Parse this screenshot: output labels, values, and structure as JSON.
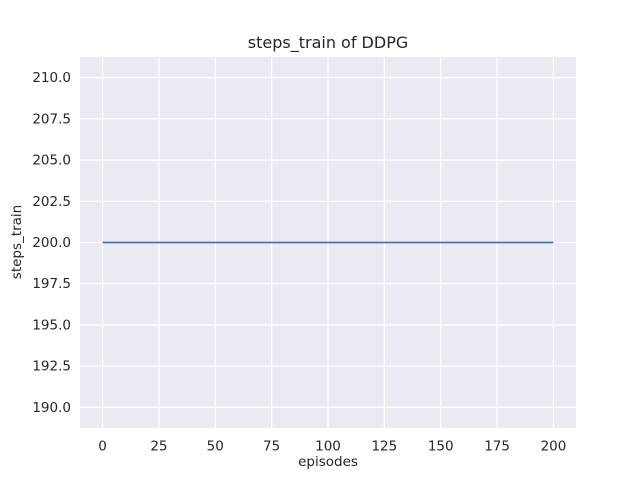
{
  "chart_data": {
    "type": "line",
    "title": "steps_train of DDPG",
    "xlabel": "episodes",
    "ylabel": "steps_train",
    "series": [
      {
        "name": "steps_train",
        "color": "#4c72b0",
        "points": [
          [
            0,
            200
          ],
          [
            200,
            200
          ]
        ],
        "description": "constant flat line at y=200 for all episodes 0-200"
      }
    ],
    "xlim": [
      -10,
      210
    ],
    "ylim": [
      188.75,
      211.25
    ],
    "x_ticks": [
      0,
      25,
      50,
      75,
      100,
      125,
      150,
      175,
      200
    ],
    "x_tick_labels": [
      "0",
      "25",
      "50",
      "75",
      "100",
      "125",
      "150",
      "175",
      "200"
    ],
    "y_ticks": [
      190,
      192.5,
      195,
      197.5,
      200,
      202.5,
      205,
      207.5,
      210
    ],
    "y_tick_labels": [
      "190.0",
      "192.5",
      "195.0",
      "197.5",
      "200.0",
      "202.5",
      "205.0",
      "207.5",
      "210.0"
    ],
    "grid": true,
    "legend": false,
    "colors": {
      "figure_background": "#ffffff",
      "plot_background": "#eaeaf2",
      "gridline": "#ffffff",
      "text": "#262626"
    }
  }
}
